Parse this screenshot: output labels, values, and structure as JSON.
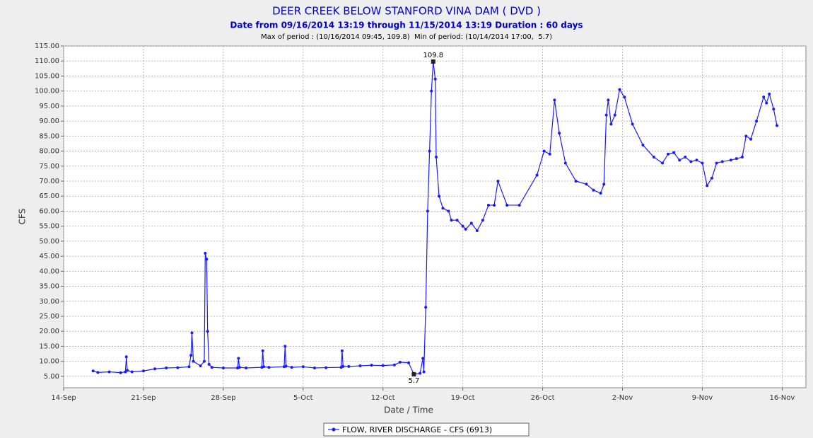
{
  "chart_data": {
    "type": "line",
    "title": "DEER CREEK BELOW STANFORD VINA DAM ( DVD )",
    "subtitle": "Date from 09/16/2014 13:19 through 11/15/2014 13:19 Duration : 60 days",
    "annotation": "Max of period : (10/16/2014 09:45, 109.8)  Min of period: (10/14/2014 17:00,  5.7)",
    "x_label": "Date / Time",
    "y_label": "CFS",
    "grid": true,
    "xlim": [
      "2014-09-14T00:00",
      "2014-11-18T02:00"
    ],
    "xticks": [
      {
        "value": "2014-09-14T00:00",
        "label": "14-Sep"
      },
      {
        "value": "2014-09-21T00:00",
        "label": "21-Sep"
      },
      {
        "value": "2014-09-28T00:00",
        "label": "28-Sep"
      },
      {
        "value": "2014-10-05T00:00",
        "label": "5-Oct"
      },
      {
        "value": "2014-10-12T00:00",
        "label": "12-Oct"
      },
      {
        "value": "2014-10-19T00:00",
        "label": "19-Oct"
      },
      {
        "value": "2014-10-26T00:00",
        "label": "26-Oct"
      },
      {
        "value": "2014-11-02T00:00",
        "label": "2-Nov"
      },
      {
        "value": "2014-11-09T00:00",
        "label": "9-Nov"
      },
      {
        "value": "2014-11-16T00:00",
        "label": "16-Nov"
      }
    ],
    "ylim": [
      1.2,
      115
    ],
    "yticks": [
      {
        "value": 5,
        "label": "5.00"
      },
      {
        "value": 10,
        "label": "10.00"
      },
      {
        "value": 15,
        "label": "15.00"
      },
      {
        "value": 20,
        "label": "20.00"
      },
      {
        "value": 25,
        "label": "25.00"
      },
      {
        "value": 30,
        "label": "30.00"
      },
      {
        "value": 35,
        "label": "35.00"
      },
      {
        "value": 40,
        "label": "40.00"
      },
      {
        "value": 45,
        "label": "45.00"
      },
      {
        "value": 50,
        "label": "50.00"
      },
      {
        "value": 55,
        "label": "55.00"
      },
      {
        "value": 60,
        "label": "60.00"
      },
      {
        "value": 65,
        "label": "65.00"
      },
      {
        "value": 70,
        "label": "70.00"
      },
      {
        "value": 75,
        "label": "75.00"
      },
      {
        "value": 80,
        "label": "80.00"
      },
      {
        "value": 85,
        "label": "85.00"
      },
      {
        "value": 90,
        "label": "90.00"
      },
      {
        "value": 95,
        "label": "95.00"
      },
      {
        "value": 100,
        "label": "100.00"
      },
      {
        "value": 105,
        "label": "105.00"
      },
      {
        "value": 110,
        "label": "110.00"
      },
      {
        "value": 115,
        "label": "115.00"
      }
    ],
    "x": [
      "2014-09-16T14:00",
      "2014-09-17T00:00",
      "2014-09-18T00:00",
      "2014-09-19T00:00",
      "2014-09-19T10:00",
      "2014-09-19T12:00",
      "2014-09-19T14:00",
      "2014-09-20T00:00",
      "2014-09-21T00:00",
      "2014-09-22T00:00",
      "2014-09-23T00:00",
      "2014-09-24T00:00",
      "2014-09-25T00:00",
      "2014-09-25T04:00",
      "2014-09-25T06:00",
      "2014-09-25T09:00",
      "2014-09-26T00:00",
      "2014-09-26T08:00",
      "2014-09-26T10:00",
      "2014-09-26T13:00",
      "2014-09-26T15:00",
      "2014-09-26T18:00",
      "2014-09-27T00:00",
      "2014-09-28T00:00",
      "2014-09-29T06:00",
      "2014-09-29T08:00",
      "2014-09-29T10:00",
      "2014-09-30T00:00",
      "2014-10-01T09:00",
      "2014-10-01T11:00",
      "2014-10-01T13:00",
      "2014-10-02T00:00",
      "2014-10-03T08:00",
      "2014-10-03T10:00",
      "2014-10-03T12:00",
      "2014-10-04T00:00",
      "2014-10-05T00:00",
      "2014-10-06T00:00",
      "2014-10-07T00:00",
      "2014-10-08T08:00",
      "2014-10-08T10:00",
      "2014-10-08T12:00",
      "2014-10-09T00:00",
      "2014-10-10T00:00",
      "2014-10-11T00:00",
      "2014-10-12T00:00",
      "2014-10-13T00:00",
      "2014-10-13T12:00",
      "2014-10-14T06:00",
      "2014-10-14T17:00",
      "2014-10-15T06:00",
      "2014-10-15T12:00",
      "2014-10-15T14:00",
      "2014-10-15T18:00",
      "2014-10-15T22:00",
      "2014-10-16T02:00",
      "2014-10-16T06:00",
      "2014-10-16T09:45",
      "2014-10-16T14:00",
      "2014-10-16T16:00",
      "2014-10-16T22:00",
      "2014-10-17T06:00",
      "2014-10-17T18:00",
      "2014-10-18T00:00",
      "2014-10-18T12:00",
      "2014-10-19T00:00",
      "2014-10-19T06:00",
      "2014-10-19T18:00",
      "2014-10-20T06:00",
      "2014-10-20T18:00",
      "2014-10-21T06:00",
      "2014-10-21T18:00",
      "2014-10-22T02:00",
      "2014-10-22T21:00",
      "2014-10-23T23:00",
      "2014-10-25T12:00",
      "2014-10-26T03:00",
      "2014-10-26T15:00",
      "2014-10-27T01:00",
      "2014-10-27T11:00",
      "2014-10-28T00:00",
      "2014-10-28T22:00",
      "2014-10-29T20:00",
      "2014-10-30T11:00",
      "2014-10-31T02:00",
      "2014-10-31T09:00",
      "2014-10-31T14:00",
      "2014-10-31T18:00",
      "2014-11-01T00:00",
      "2014-11-01T08:00",
      "2014-11-01T18:00",
      "2014-11-02T04:00",
      "2014-11-02T21:00",
      "2014-11-03T19:00",
      "2014-11-04T18:00",
      "2014-11-05T12:00",
      "2014-11-06T00:00",
      "2014-11-06T12:00",
      "2014-11-07T00:00",
      "2014-11-07T12:00",
      "2014-11-08T00:00",
      "2014-11-08T12:00",
      "2014-11-09T00:00",
      "2014-11-09T10:00",
      "2014-11-09T20:00",
      "2014-11-10T06:00",
      "2014-11-10T18:00",
      "2014-11-11T12:00",
      "2014-11-12T00:00",
      "2014-11-12T12:00",
      "2014-11-12T20:00",
      "2014-11-13T06:00",
      "2014-11-13T18:00",
      "2014-11-14T09:00",
      "2014-11-14T15:00",
      "2014-11-14T21:00",
      "2014-11-15T06:00",
      "2014-11-15T13:00"
    ],
    "series": [
      {
        "name": "FLOW, RIVER DISCHARGE - CFS (6913)",
        "color": "#1a1aff",
        "values": [
          6.8,
          6.3,
          6.5,
          6.2,
          6.5,
          11.5,
          7,
          6.5,
          6.8,
          7.5,
          7.8,
          7.9,
          8.2,
          12,
          19.5,
          10,
          8.5,
          10,
          46,
          44,
          20,
          9,
          8,
          7.8,
          7.8,
          11,
          8,
          7.8,
          8,
          13.5,
          8.2,
          8,
          8.2,
          15,
          8.4,
          8,
          8.2,
          7.8,
          7.9,
          8,
          13.5,
          8.3,
          8.3,
          8.5,
          8.7,
          8.6,
          8.8,
          9.7,
          9.5,
          5.7,
          6,
          11,
          6.5,
          28,
          60,
          80,
          100,
          109.8,
          104,
          78,
          65,
          61,
          60,
          57,
          57,
          55,
          54,
          56,
          53.5,
          57,
          62,
          62,
          70,
          62,
          62,
          72,
          80,
          79,
          97,
          86,
          76,
          70,
          69,
          67,
          66,
          69,
          92,
          97,
          89,
          92,
          100.5,
          98,
          89,
          82,
          78,
          76,
          79,
          79.5,
          77,
          78,
          76.5,
          77,
          76,
          68.5,
          71,
          76,
          76.5,
          77,
          77.5,
          78,
          85,
          84,
          90,
          98,
          96,
          99,
          94,
          88.5
        ],
        "value_labels": [
          null,
          null,
          null,
          null,
          null,
          null,
          null,
          null,
          null,
          null,
          null,
          null,
          null,
          null,
          null,
          null,
          null,
          null,
          null,
          null,
          null,
          null,
          null,
          null,
          null,
          null,
          null,
          null,
          null,
          null,
          null,
          null,
          null,
          null,
          null,
          null,
          null,
          null,
          null,
          null,
          null,
          null,
          null,
          null,
          null,
          null,
          null,
          null,
          null,
          "5.7",
          null,
          null,
          null,
          null,
          null,
          null,
          null,
          "109.8",
          null,
          null,
          null,
          null,
          null,
          null,
          null,
          null,
          null,
          null,
          null,
          null,
          null,
          null,
          null,
          null,
          null,
          null,
          null,
          null,
          null,
          null,
          null,
          null,
          null,
          null,
          null,
          null,
          null,
          null,
          null,
          null,
          null,
          null,
          null,
          null,
          null,
          null,
          null,
          null,
          null,
          null,
          null,
          null,
          null,
          null,
          null,
          null,
          null,
          null,
          null,
          null,
          null,
          null,
          null,
          null,
          null,
          null,
          null,
          null
        ]
      }
    ]
  }
}
